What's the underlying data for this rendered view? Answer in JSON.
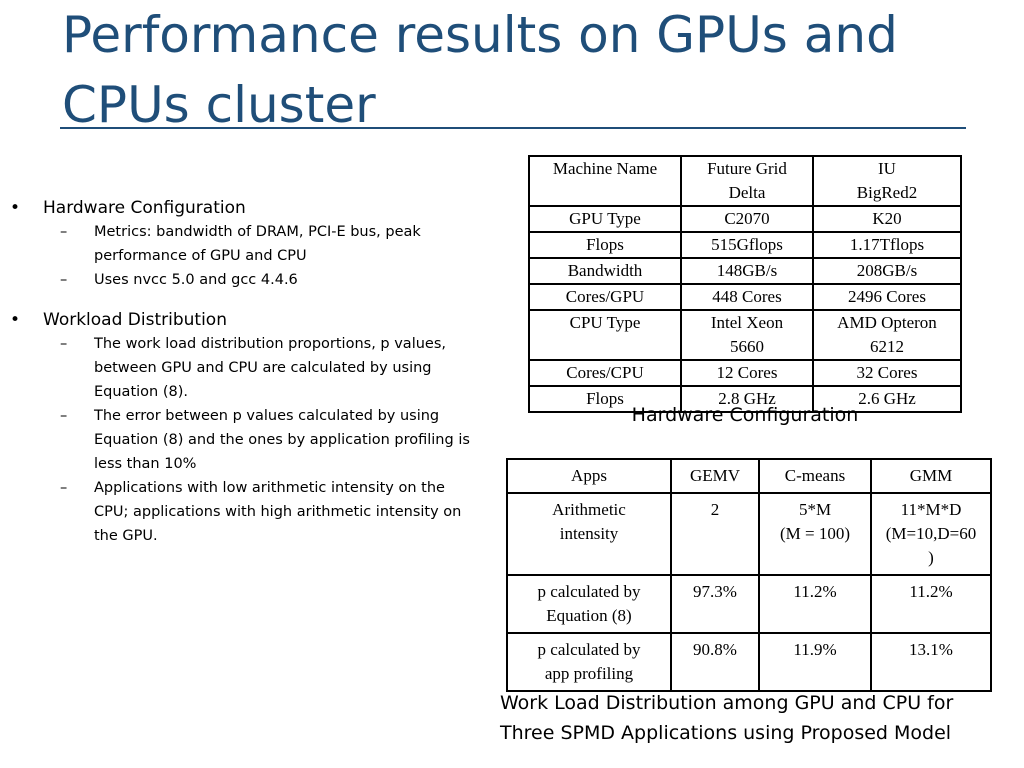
{
  "title": {
    "line1": "Performance results on GPUs and",
    "line2": "CPUs cluster"
  },
  "bullets": {
    "marker": "•",
    "submarker": "–",
    "hardware": {
      "label": "Hardware Configuration",
      "items": [
        "Metrics: bandwidth of DRAM, PCI-E bus, peak",
        "performance of GPU and CPU",
        "Uses nvcc 5.0 and gcc 4.4.6"
      ]
    },
    "workload": {
      "label": "Workload Distribution",
      "item1": [
        "The work load distribution proportions, p values,",
        "between GPU and CPU are calculated by using",
        "Equation (8)."
      ],
      "item2": [
        "The error between p values calculated by using",
        "Equation (8) and the ones by application profiling is",
        "less than 10%"
      ],
      "item3": [
        "Applications with low arithmetic intensity on the",
        "CPU; applications with high arithmetic intensity on",
        "the GPU."
      ]
    }
  },
  "hardware_table": {
    "caption": "Hardware Configuration",
    "header": [
      "Machine Name",
      "Future Grid",
      "Delta",
      "IU",
      "BigRed2"
    ],
    "rows": [
      [
        "GPU Type",
        "C2070",
        "K20"
      ],
      [
        "Flops",
        "515Gflops",
        "1.17Tflops"
      ],
      [
        "Bandwidth",
        "148GB/s",
        "208GB/s"
      ],
      [
        "Cores/GPU",
        "448 Cores",
        "2496 Cores"
      ],
      [
        "CPU Type",
        "Intel Xeon",
        "5660",
        "AMD Opteron",
        "6212"
      ],
      [
        "Cores/CPU",
        "12 Cores",
        "32 Cores"
      ],
      [
        "Flops",
        "2.8 GHz",
        "2.6 GHz"
      ]
    ]
  },
  "workload_table": {
    "caption_line1": "Work Load Distribution among GPU and CPU for",
    "caption_line2": "Three SPMD Applications using Proposed Model",
    "header": [
      "Apps",
      "GEMV",
      "C-means",
      "GMM"
    ],
    "rows": [
      [
        "Arithmetic",
        "intensity",
        "2",
        "5*M",
        "(M = 100)",
        "11*M*D",
        "(M=10,D=60",
        ")"
      ],
      [
        "p calculated by",
        "Equation (8)",
        "97.3%",
        "11.2%",
        "11.2%"
      ],
      [
        "p calculated by",
        "app profiling",
        "90.8%",
        "11.9%",
        "13.1%"
      ]
    ]
  }
}
